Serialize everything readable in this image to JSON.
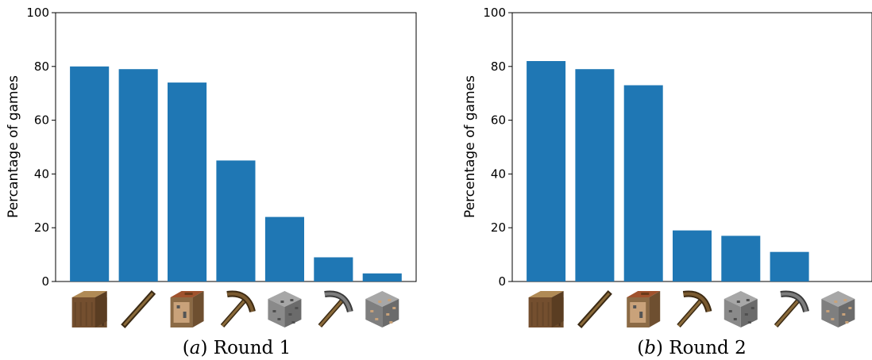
{
  "chart_data": [
    {
      "type": "bar",
      "caption_label": "a",
      "caption_text": "Round 1",
      "ylabel": "Percantage of games",
      "ylim": [
        0,
        100
      ],
      "yticks": [
        "0",
        "20",
        "40",
        "60",
        "80",
        "100"
      ],
      "categories": [
        "wood-log-icon",
        "stick-icon",
        "crafting-table-icon",
        "wooden-pickaxe-icon",
        "cobblestone-icon",
        "stone-pickaxe-icon",
        "iron-ore-icon"
      ],
      "values": [
        80,
        79,
        74,
        45,
        24,
        9,
        3
      ],
      "bar_color": "#1f77b4",
      "grid": false
    },
    {
      "type": "bar",
      "caption_label": "b",
      "caption_text": "Round 2",
      "ylabel": "Percentage of games",
      "ylim": [
        0,
        100
      ],
      "yticks": [
        "0",
        "20",
        "40",
        "60",
        "80",
        "100"
      ],
      "categories": [
        "wood-log-icon",
        "stick-icon",
        "crafting-table-icon",
        "wooden-pickaxe-icon",
        "cobblestone-icon",
        "stone-pickaxe-icon",
        "iron-ore-icon"
      ],
      "values": [
        82,
        79,
        73,
        19,
        17,
        11,
        0
      ],
      "bar_color": "#1f77b4",
      "grid": false
    }
  ]
}
